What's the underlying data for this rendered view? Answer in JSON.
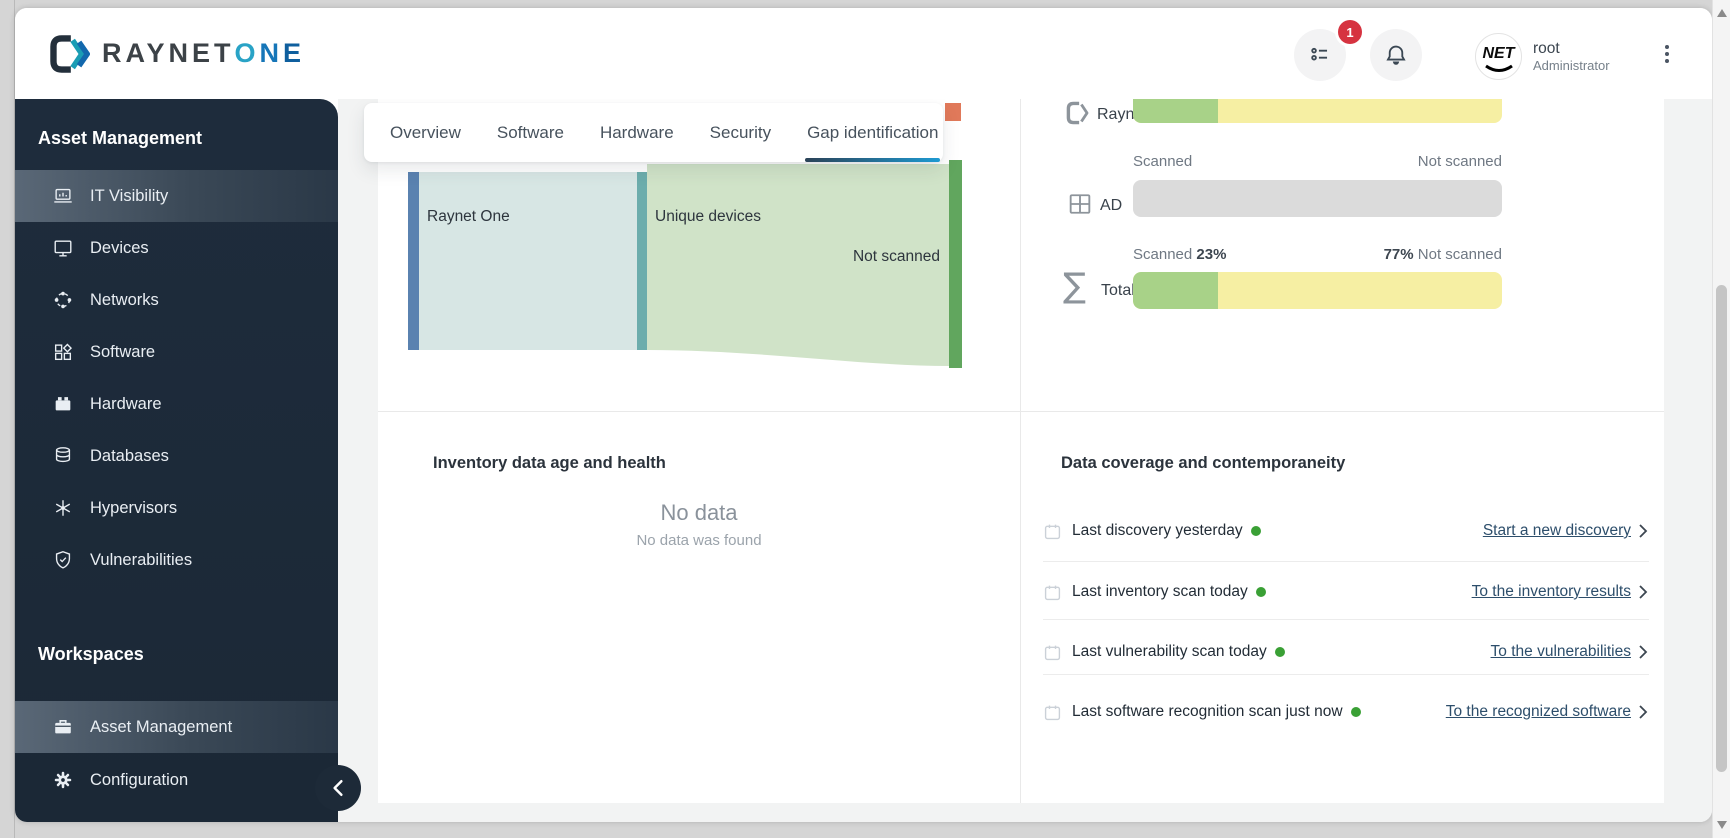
{
  "header": {
    "brand": {
      "name_primary": "RAYNET",
      "accent_letters": [
        "O",
        "N",
        "E"
      ]
    },
    "tasklist_badge": "1",
    "user": {
      "name": "root",
      "role": "Administrator",
      "avatar_text": "NET"
    }
  },
  "sidebar": {
    "sections": [
      {
        "title": "Asset Management",
        "items": [
          {
            "label": "IT Visibility"
          },
          {
            "label": "Devices"
          },
          {
            "label": "Networks"
          },
          {
            "label": "Software"
          },
          {
            "label": "Hardware"
          },
          {
            "label": "Databases"
          },
          {
            "label": "Hypervisors"
          },
          {
            "label": "Vulnerabilities"
          }
        ]
      },
      {
        "title": "Workspaces",
        "items": [
          {
            "label": "Asset Management"
          },
          {
            "label": "Configuration"
          }
        ]
      }
    ]
  },
  "tabs": {
    "items": [
      {
        "label": "Overview"
      },
      {
        "label": "Software"
      },
      {
        "label": "Hardware"
      },
      {
        "label": "Security"
      },
      {
        "label": "Gap identification"
      }
    ],
    "active": "Gap identification"
  },
  "gap_identification": {
    "sankey": {
      "left_node": "Raynet One",
      "middle_node": "Unique devices",
      "flow_label": "Not scanned",
      "colors": {
        "left_bar": "#5a82b0",
        "left_flow": "#d7e6e4",
        "middle_bar": "#6cadac",
        "right_flow": "#d0e3c8",
        "right_bar_top": "#e0795a",
        "right_bar": "#61a65e"
      }
    },
    "scan_coverage": {
      "raynet": {
        "label": "Raynet",
        "scanned_pct": 23
      },
      "ad": {
        "label": "AD",
        "scanned_label": "Scanned",
        "not_scanned_label": "Not scanned",
        "scanned_pct": 0
      },
      "total": {
        "label": "Total",
        "scanned_label": "Scanned",
        "scanned_pct_text": "23%",
        "not_scanned_pct_text": "77%",
        "not_scanned_label": "Not scanned",
        "scanned_pct": 23
      },
      "colors": {
        "scanned": "#a8d288",
        "not_scanned": "#f6efa3",
        "empty": "#dbdbdb"
      }
    }
  },
  "inventory_panel": {
    "title": "Inventory data age and health",
    "empty_title": "No data",
    "empty_message": "No data was found"
  },
  "coverage_panel": {
    "title": "Data coverage and contemporaneity",
    "status_dot_color": "#3aa035",
    "rows": [
      {
        "label": "Last discovery yesterday",
        "link": "Start a new discovery"
      },
      {
        "label": "Last inventory scan today",
        "link": "To the inventory results"
      },
      {
        "label": "Last vulnerability scan today",
        "link": "To the vulnerabilities"
      },
      {
        "label": "Last software recognition scan just now",
        "link": "To the recognized software"
      }
    ]
  }
}
